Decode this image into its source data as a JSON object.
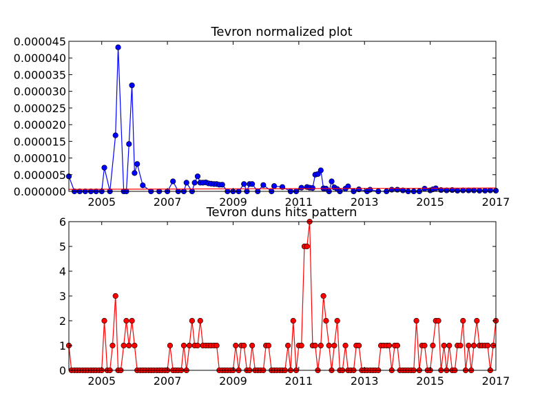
{
  "chart_data": [
    {
      "type": "line",
      "title": "Tevron normalized plot",
      "xlabel": "",
      "ylabel": "",
      "x_range": [
        2004.0,
        2017.0
      ],
      "ylim": [
        0,
        4.5e-05
      ],
      "x_ticks": [
        2005,
        2007,
        2009,
        2011,
        2013,
        2015,
        2017
      ],
      "x_tick_labels": [
        "2005",
        "2007",
        "2009",
        "2011",
        "2013",
        "2015",
        "2017"
      ],
      "y_ticks": [
        0,
        5e-06,
        1e-05,
        1.5e-05,
        2e-05,
        2.5e-05,
        3e-05,
        3.5e-05,
        4e-05,
        4.5e-05
      ],
      "y_tick_labels": [
        "0.000000",
        "0.000005",
        "0.000010",
        "0.000015",
        "0.000020",
        "0.000025",
        "0.000030",
        "0.000035",
        "0.000040",
        "0.000045"
      ],
      "grid": false,
      "series": [
        {
          "color": "#0000ff",
          "marker": "circle",
          "x": [
            2004.0,
            2004.17,
            2004.33,
            2004.5,
            2004.67,
            2004.83,
            2005.0,
            2005.08,
            2005.25,
            2005.42,
            2005.5,
            2005.67,
            2005.75,
            2005.83,
            2005.92,
            2006.0,
            2006.08,
            2006.25,
            2006.5,
            2006.75,
            2007.0,
            2007.17,
            2007.33,
            2007.5,
            2007.58,
            2007.75,
            2007.83,
            2007.92,
            2008.0,
            2008.08,
            2008.17,
            2008.25,
            2008.33,
            2008.42,
            2008.5,
            2008.58,
            2008.67,
            2008.83,
            2009.0,
            2009.17,
            2009.33,
            2009.42,
            2009.5,
            2009.58,
            2009.75,
            2009.92,
            2010.17,
            2010.25,
            2010.5,
            2010.75,
            2010.92,
            2011.08,
            2011.25,
            2011.33,
            2011.42,
            2011.5,
            2011.58,
            2011.67,
            2011.75,
            2011.83,
            2011.92,
            2012.0,
            2012.08,
            2012.17,
            2012.25,
            2012.42,
            2012.5,
            2012.67,
            2012.83,
            2013.08,
            2013.17,
            2013.42,
            2013.67,
            2013.83,
            2014.0,
            2014.17,
            2014.33,
            2014.5,
            2014.67,
            2014.83,
            2015.0,
            2015.08,
            2015.17,
            2015.33,
            2015.5,
            2015.67,
            2015.83,
            2016.0,
            2016.17,
            2016.33,
            2016.5,
            2016.67,
            2016.83,
            2017.0
          ],
          "y": [
            4.5e-06,
            0.0,
            0.0,
            0.0,
            0.0,
            0.0,
            0.0,
            7.1e-06,
            0.0,
            1.68e-05,
            4.32e-05,
            0.0,
            0.0,
            1.42e-05,
            3.18e-05,
            5.5e-06,
            8.2e-06,
            1.8e-06,
            0.0,
            0.0,
            0.0,
            3e-06,
            0.0,
            0.0,
            2.6e-06,
            0.0,
            2.6e-06,
            4.5e-06,
            2.6e-06,
            2.6e-06,
            2.7e-06,
            2.4e-06,
            2.3e-06,
            2.2e-06,
            2.2e-06,
            2e-06,
            2e-06,
            0.0,
            0.0,
            0.0,
            2.2e-06,
            0.0,
            2.2e-06,
            2.2e-06,
            0.0,
            1.9e-06,
            0.0,
            1.6e-06,
            1.3e-06,
            0.0,
            0.0,
            1.1e-06,
            1.3e-06,
            1.1e-06,
            1e-06,
            5e-06,
            5.2e-06,
            6.3e-06,
            9e-07,
            8e-07,
            0.0,
            3e-06,
            1.2e-06,
            7e-07,
            0.0,
            8e-07,
            1.5e-06,
            0.0,
            6e-07,
            0.0,
            5e-07,
            0.0,
            0.0,
            5e-07,
            5e-07,
            3e-07,
            0.0,
            0.0,
            0.0,
            8e-07,
            3e-07,
            6e-07,
            9e-07,
            4e-07,
            3e-07,
            4e-07,
            2e-07,
            3e-07,
            3e-07,
            3e-07,
            2e-07,
            2e-07,
            3e-07,
            2e-07
          ]
        },
        {
          "color": "#ff0000",
          "marker": "none",
          "x": [
            2004.0,
            2017.0
          ],
          "y": [
            6e-07,
            1e-06
          ]
        }
      ]
    },
    {
      "type": "line",
      "title": "Tevron duns hits pattern",
      "xlabel": "",
      "ylabel": "",
      "x_range": [
        2004.0,
        2017.0
      ],
      "ylim": [
        0,
        6
      ],
      "x_ticks": [
        2005,
        2007,
        2009,
        2011,
        2013,
        2015,
        2017
      ],
      "x_tick_labels": [
        "2005",
        "2007",
        "2009",
        "2011",
        "2013",
        "2015",
        "2017"
      ],
      "y_ticks": [
        0,
        1,
        2,
        3,
        4,
        5,
        6
      ],
      "y_tick_labels": [
        "0",
        "1",
        "2",
        "3",
        "4",
        "5",
        "6"
      ],
      "grid": false,
      "series": [
        {
          "color": "#ff0000",
          "marker": "circle",
          "x": [
            2004.0,
            2004.08,
            2004.17,
            2004.25,
            2004.33,
            2004.42,
            2004.5,
            2004.58,
            2004.67,
            2004.75,
            2004.83,
            2004.92,
            2005.0,
            2005.08,
            2005.17,
            2005.25,
            2005.33,
            2005.42,
            2005.5,
            2005.58,
            2005.67,
            2005.75,
            2005.83,
            2005.92,
            2006.0,
            2006.08,
            2006.17,
            2006.25,
            2006.33,
            2006.42,
            2006.5,
            2006.58,
            2006.67,
            2006.75,
            2006.83,
            2006.92,
            2007.0,
            2007.08,
            2007.17,
            2007.25,
            2007.33,
            2007.42,
            2007.5,
            2007.58,
            2007.67,
            2007.75,
            2007.83,
            2007.92,
            2008.0,
            2008.08,
            2008.17,
            2008.25,
            2008.33,
            2008.42,
            2008.5,
            2008.58,
            2008.67,
            2008.75,
            2008.83,
            2008.92,
            2009.0,
            2009.08,
            2009.17,
            2009.25,
            2009.33,
            2009.42,
            2009.5,
            2009.58,
            2009.67,
            2009.75,
            2009.83,
            2009.92,
            2010.0,
            2010.08,
            2010.17,
            2010.25,
            2010.33,
            2010.42,
            2010.5,
            2010.58,
            2010.67,
            2010.75,
            2010.83,
            2010.92,
            2011.0,
            2011.08,
            2011.17,
            2011.25,
            2011.33,
            2011.42,
            2011.5,
            2011.58,
            2011.67,
            2011.75,
            2011.83,
            2011.92,
            2012.0,
            2012.08,
            2012.17,
            2012.25,
            2012.33,
            2012.42,
            2012.5,
            2012.58,
            2012.67,
            2012.75,
            2012.83,
            2012.92,
            2013.0,
            2013.08,
            2013.17,
            2013.25,
            2013.33,
            2013.42,
            2013.5,
            2013.58,
            2013.67,
            2013.75,
            2013.83,
            2013.92,
            2014.0,
            2014.08,
            2014.17,
            2014.25,
            2014.33,
            2014.42,
            2014.5,
            2014.58,
            2014.67,
            2014.75,
            2014.83,
            2014.92,
            2015.0,
            2015.08,
            2015.17,
            2015.25,
            2015.33,
            2015.42,
            2015.5,
            2015.58,
            2015.67,
            2015.75,
            2015.83,
            2015.92,
            2016.0,
            2016.08,
            2016.17,
            2016.25,
            2016.33,
            2016.42,
            2016.5,
            2016.58,
            2016.67,
            2016.75,
            2016.83,
            2016.92,
            2017.0
          ],
          "y": [
            1,
            0,
            0,
            0,
            0,
            0,
            0,
            0,
            0,
            0,
            0,
            0,
            0,
            2,
            0,
            0,
            1,
            3,
            0,
            0,
            1,
            2,
            1,
            2,
            1,
            0,
            0,
            0,
            0,
            0,
            0,
            0,
            0,
            0,
            0,
            0,
            0,
            1,
            0,
            0,
            0,
            0,
            1,
            0,
            1,
            2,
            1,
            1,
            2,
            1,
            1,
            1,
            1,
            1,
            1,
            0,
            0,
            0,
            0,
            0,
            0,
            1,
            0,
            1,
            1,
            0,
            0,
            1,
            0,
            0,
            0,
            0,
            1,
            1,
            0,
            0,
            0,
            0,
            0,
            0,
            1,
            0,
            2,
            0,
            1,
            1,
            5,
            5,
            6,
            1,
            1,
            0,
            1,
            3,
            2,
            1,
            0,
            1,
            2,
            0,
            0,
            1,
            0,
            0,
            0,
            1,
            1,
            0,
            0,
            0,
            0,
            0,
            0,
            0,
            1,
            1,
            1,
            1,
            0,
            1,
            1,
            0,
            0,
            0,
            0,
            0,
            0,
            2,
            0,
            1,
            1,
            0,
            0,
            1,
            2,
            2,
            0,
            1,
            0,
            1,
            0,
            0,
            1,
            1,
            2,
            0,
            1,
            0,
            1,
            2,
            1,
            1,
            1,
            1,
            0,
            1,
            2
          ]
        }
      ]
    }
  ]
}
